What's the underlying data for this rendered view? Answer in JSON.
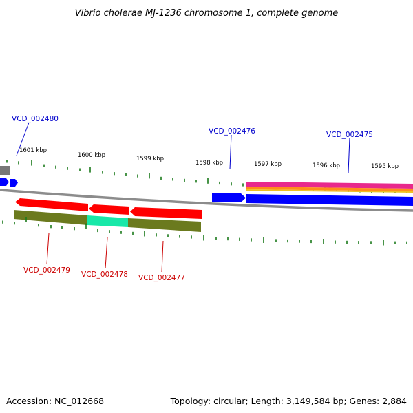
{
  "title": "Vibrio cholerae MJ-1236 chromosome 1, complete genome",
  "footer": {
    "accession": "Accession: NC_012668",
    "summary": "Topology: circular; Length: 3,149,584 bp; Genes: 2,884"
  },
  "scale_labels": [
    "1601 kbp",
    "1600 kbp",
    "1599 kbp",
    "1598 kbp",
    "1597 kbp",
    "1596 kbp",
    "1595 kbp"
  ],
  "gene_labels": {
    "forward": [
      "VCD_002480",
      "VCD_002476",
      "VCD_002475"
    ],
    "reverse": [
      "VCD_002479",
      "VCD_002478",
      "VCD_002477"
    ]
  },
  "colors": {
    "forward_label": "#0000cc",
    "reverse_label": "#cc0000",
    "forward_gene": "#0000ff",
    "reverse_gene": "#ff0000",
    "backbone": "#8c8c8c",
    "tick": "#1a7a1a",
    "olive_feature": "#6b7a1e",
    "cyan_feature": "#18e8a8",
    "magenta_feature": "#e8288c",
    "orange_feature": "#ff8c1a"
  }
}
